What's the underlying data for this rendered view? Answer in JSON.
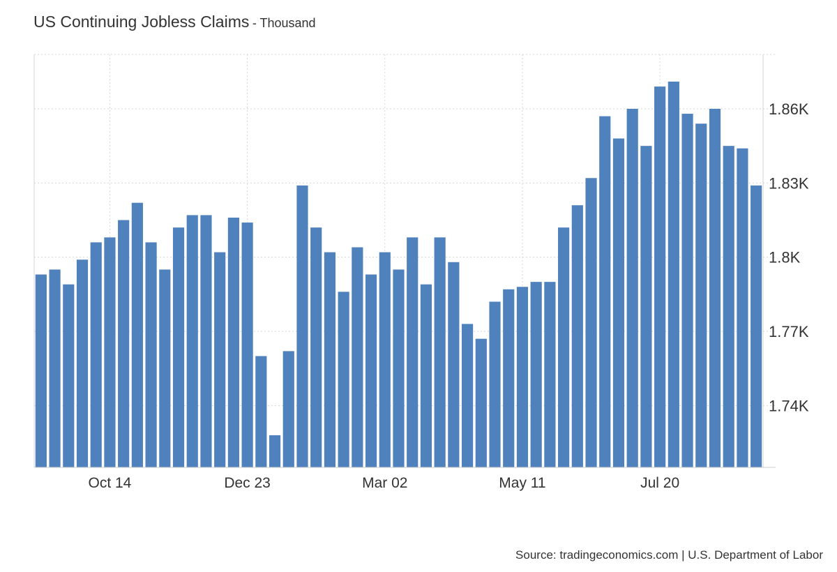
{
  "header": {
    "title": "US Continuing Jobless Claims",
    "subtitle": "- Thousand"
  },
  "footer": {
    "source": "Source: tradingeconomics.com | U.S. Department of Labor"
  },
  "colors": {
    "bar": "#4f81bd",
    "grid": "#d6d6d6",
    "text": "#333333"
  },
  "chart_data": {
    "type": "bar",
    "title": "US Continuing Jobless Claims",
    "subtitle": "Thousand",
    "xlabel": "",
    "ylabel": "",
    "grid": true,
    "legend": "none",
    "y_axis_position": "right",
    "ylim": [
      1715,
      1882
    ],
    "yticks": [
      1740,
      1770,
      1800,
      1830,
      1860
    ],
    "ytick_labels": [
      "1.74K",
      "1.77K",
      "1.8K",
      "1.83K",
      "1.86K"
    ],
    "xtick_labels": [
      {
        "label": "Oct 14",
        "index": 5
      },
      {
        "label": "Dec 23",
        "index": 15
      },
      {
        "label": "Mar 02",
        "index": 25
      },
      {
        "label": "May 11",
        "index": 35
      },
      {
        "label": "Jul 20",
        "index": 45
      }
    ],
    "values": [
      1793,
      1795,
      1789,
      1799,
      1806,
      1808,
      1815,
      1822,
      1806,
      1795,
      1812,
      1817,
      1817,
      1802,
      1816,
      1814,
      1760,
      1728,
      1762,
      1829,
      1812,
      1802,
      1786,
      1804,
      1793,
      1802,
      1795,
      1808,
      1789,
      1808,
      1798,
      1773,
      1767,
      1782,
      1787,
      1788,
      1790,
      1790,
      1812,
      1821,
      1832,
      1857,
      1848,
      1860,
      1845,
      1869,
      1871,
      1858,
      1854,
      1860,
      1845,
      1844,
      1829
    ]
  }
}
